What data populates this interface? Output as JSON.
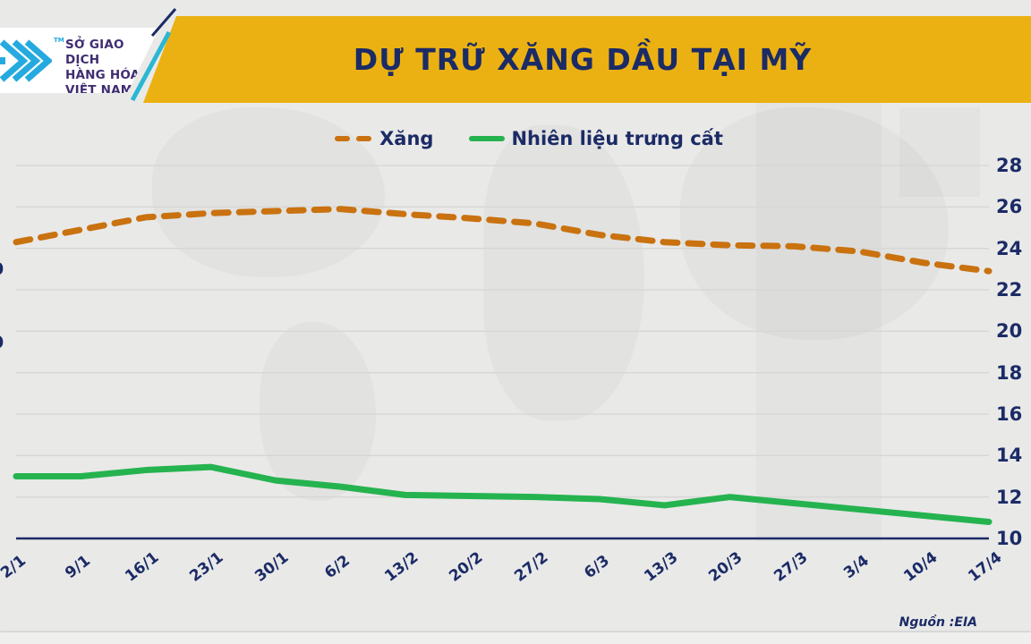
{
  "header": {
    "title": "DỰ TRỮ XĂNG DẦU TẠI MỸ",
    "logo": {
      "line1": "SỞ GIAO DỊCH",
      "line2": "HÀNG HÓA",
      "line3": "VIỆT NAM",
      "trademark": "TM"
    }
  },
  "legend": [
    {
      "label": "Xăng",
      "color": "#c9720f",
      "style": "dashed"
    },
    {
      "label": "Nhiên liệu trưng cất",
      "color": "#25b34f",
      "style": "solid"
    }
  ],
  "chart_data": {
    "type": "line",
    "title": "DỰ TRỮ XĂNG DẦU TẠI MỸ",
    "categories": [
      "2/1",
      "9/1",
      "16/1",
      "23/1",
      "30/1",
      "6/2",
      "13/2",
      "20/2",
      "27/2",
      "6/3",
      "13/3",
      "20/3",
      "27/3",
      "3/4",
      "10/4",
      "17/4"
    ],
    "series": [
      {
        "name": "Xăng",
        "color": "#c9720f",
        "dashed": true,
        "values": [
          24.3,
          24.9,
          25.5,
          25.7,
          25.8,
          25.9,
          25.65,
          25.45,
          25.2,
          24.65,
          24.3,
          24.15,
          24.1,
          23.85,
          23.3,
          22.9
        ]
      },
      {
        "name": "Nhiên liệu trưng cất",
        "color": "#25b34f",
        "dashed": false,
        "values": [
          13.0,
          13.0,
          13.3,
          13.45,
          12.8,
          12.5,
          12.1,
          12.05,
          12.0,
          11.9,
          11.6,
          12.0,
          11.7,
          11.4,
          11.1,
          10.8
        ]
      }
    ],
    "y_axis_right": {
      "min": 10,
      "max": 28,
      "step": 2,
      "ticks": [
        "28",
        "26",
        "24",
        "22",
        "20",
        "18",
        "16",
        "14",
        "12",
        "10"
      ]
    },
    "left_axis_fragments": [
      {
        "text": "0",
        "y": 301
      },
      {
        "text": "0",
        "y": 383
      },
      {
        "text": "-",
        "y": 403
      }
    ],
    "grid": true,
    "legend_position": "top"
  },
  "source": {
    "label": "Nguồn :EIA"
  },
  "colors": {
    "banner_yellow": "#ebb112",
    "navy": "#1b2b66",
    "orange": "#c9720f",
    "green": "#25b34f",
    "teal_slash": "#2ab7d4",
    "logo_blue": "#25aadf",
    "logo_text": "#3f2d71",
    "background": "#e9e9e8",
    "gridline": "#d7d6d4"
  }
}
